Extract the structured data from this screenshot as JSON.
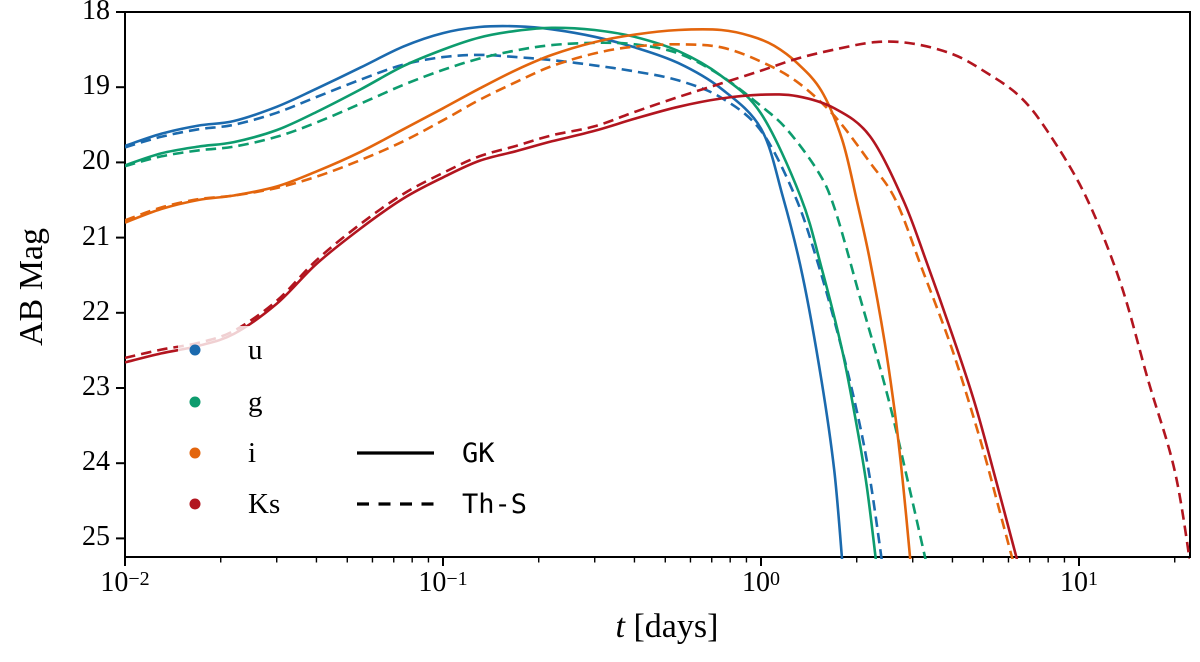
{
  "figure": {
    "background": "#ffffff"
  },
  "axes": {
    "x": {
      "label_t": "t",
      "label_unit": " [days]",
      "scale": "log",
      "min": 0.01,
      "max": 22.3,
      "ticks": [
        {
          "value": 0.01,
          "base": "10",
          "exp": "−2"
        },
        {
          "value": 0.1,
          "base": "10",
          "exp": "−1"
        },
        {
          "value": 1.0,
          "base": "10",
          "exp": "0"
        },
        {
          "value": 10.0,
          "base": "10",
          "exp": "1"
        }
      ]
    },
    "y": {
      "label": "AB Mag",
      "inverted": true,
      "min": 18,
      "max": 25.25,
      "ticks": [
        "18",
        "19",
        "20",
        "21",
        "22",
        "23",
        "24",
        "25"
      ]
    }
  },
  "legend": {
    "bands": [
      {
        "label": "u",
        "color": "#1b6aae"
      },
      {
        "label": "g",
        "color": "#0d9c6e"
      },
      {
        "label": "i",
        "color": "#e3650d"
      },
      {
        "label": "Ks",
        "color": "#b2151f"
      }
    ],
    "models": [
      {
        "label": "GK",
        "linestyle": "solid"
      },
      {
        "label": "Th-S",
        "linestyle": "dashed"
      }
    ],
    "frame_color": "#ffffff",
    "frame_alpha": 0.8
  },
  "chart_data": {
    "type": "line",
    "title": "",
    "xlabel": "t [days]",
    "ylabel": "AB Mag",
    "x_scale": "log",
    "xlim": [
      0.01,
      22.3
    ],
    "ylim_display": [
      25.25,
      18
    ],
    "grid": false,
    "legend_position": "lower-left",
    "series": [
      {
        "name": "u GK",
        "band": "u",
        "model": "GK",
        "style": "solid",
        "color": "#1b6aae",
        "points": [
          [
            0.01,
            19.78
          ],
          [
            0.013,
            19.62
          ],
          [
            0.017,
            19.51
          ],
          [
            0.022,
            19.45
          ],
          [
            0.03,
            19.26
          ],
          [
            0.04,
            19.02
          ],
          [
            0.055,
            18.74
          ],
          [
            0.075,
            18.46
          ],
          [
            0.1,
            18.28
          ],
          [
            0.13,
            18.2
          ],
          [
            0.17,
            18.19
          ],
          [
            0.22,
            18.23
          ],
          [
            0.3,
            18.33
          ],
          [
            0.4,
            18.47
          ],
          [
            0.55,
            18.68
          ],
          [
            0.75,
            19.02
          ],
          [
            1.0,
            19.55
          ],
          [
            1.17,
            20.45
          ],
          [
            1.35,
            21.5
          ],
          [
            1.55,
            22.9
          ],
          [
            1.7,
            24.1
          ],
          [
            1.8,
            25.3
          ]
        ]
      },
      {
        "name": "u Th-S",
        "band": "u",
        "model": "Th-S",
        "style": "dashed",
        "color": "#1b6aae",
        "points": [
          [
            0.01,
            19.8
          ],
          [
            0.013,
            19.66
          ],
          [
            0.017,
            19.56
          ],
          [
            0.022,
            19.5
          ],
          [
            0.03,
            19.34
          ],
          [
            0.04,
            19.13
          ],
          [
            0.055,
            18.9
          ],
          [
            0.075,
            18.7
          ],
          [
            0.1,
            18.6
          ],
          [
            0.13,
            18.57
          ],
          [
            0.17,
            18.6
          ],
          [
            0.22,
            18.64
          ],
          [
            0.3,
            18.71
          ],
          [
            0.4,
            18.79
          ],
          [
            0.55,
            18.91
          ],
          [
            0.75,
            19.14
          ],
          [
            1.0,
            19.58
          ],
          [
            1.28,
            20.45
          ],
          [
            1.5,
            21.3
          ],
          [
            1.75,
            22.3
          ],
          [
            2.0,
            23.3
          ],
          [
            2.2,
            24.2
          ],
          [
            2.4,
            25.3
          ]
        ]
      },
      {
        "name": "g GK",
        "band": "g",
        "model": "GK",
        "style": "solid",
        "color": "#0d9c6e",
        "points": [
          [
            0.01,
            20.04
          ],
          [
            0.013,
            19.88
          ],
          [
            0.017,
            19.79
          ],
          [
            0.022,
            19.73
          ],
          [
            0.03,
            19.57
          ],
          [
            0.04,
            19.33
          ],
          [
            0.055,
            19.03
          ],
          [
            0.075,
            18.72
          ],
          [
            0.1,
            18.5
          ],
          [
            0.13,
            18.34
          ],
          [
            0.17,
            18.25
          ],
          [
            0.22,
            18.21
          ],
          [
            0.3,
            18.24
          ],
          [
            0.4,
            18.33
          ],
          [
            0.55,
            18.52
          ],
          [
            0.75,
            18.85
          ],
          [
            1.0,
            19.35
          ],
          [
            1.33,
            20.45
          ],
          [
            1.55,
            21.4
          ],
          [
            1.8,
            22.5
          ],
          [
            2.0,
            23.5
          ],
          [
            2.15,
            24.3
          ],
          [
            2.3,
            25.3
          ]
        ]
      },
      {
        "name": "g Th-S",
        "band": "g",
        "model": "Th-S",
        "style": "dashed",
        "color": "#0d9c6e",
        "points": [
          [
            0.01,
            20.05
          ],
          [
            0.013,
            19.92
          ],
          [
            0.017,
            19.84
          ],
          [
            0.022,
            19.79
          ],
          [
            0.03,
            19.66
          ],
          [
            0.04,
            19.47
          ],
          [
            0.055,
            19.22
          ],
          [
            0.075,
            18.97
          ],
          [
            0.1,
            18.77
          ],
          [
            0.13,
            18.62
          ],
          [
            0.17,
            18.51
          ],
          [
            0.22,
            18.44
          ],
          [
            0.3,
            18.41
          ],
          [
            0.4,
            18.43
          ],
          [
            0.55,
            18.55
          ],
          [
            0.75,
            18.85
          ],
          [
            1.0,
            19.25
          ],
          [
            1.2,
            19.55
          ],
          [
            1.5,
            20.1
          ],
          [
            1.7,
            20.6
          ],
          [
            2.05,
            21.8
          ],
          [
            2.5,
            23.1
          ],
          [
            2.9,
            24.25
          ],
          [
            3.3,
            25.3
          ]
        ]
      },
      {
        "name": "i GK",
        "band": "i",
        "model": "GK",
        "style": "solid",
        "color": "#e3650d",
        "points": [
          [
            0.01,
            20.8
          ],
          [
            0.013,
            20.62
          ],
          [
            0.017,
            20.5
          ],
          [
            0.022,
            20.44
          ],
          [
            0.03,
            20.32
          ],
          [
            0.04,
            20.12
          ],
          [
            0.055,
            19.86
          ],
          [
            0.075,
            19.56
          ],
          [
            0.1,
            19.28
          ],
          [
            0.13,
            19.02
          ],
          [
            0.17,
            18.77
          ],
          [
            0.22,
            18.57
          ],
          [
            0.3,
            18.4
          ],
          [
            0.4,
            18.3
          ],
          [
            0.55,
            18.24
          ],
          [
            0.75,
            18.24
          ],
          [
            0.93,
            18.32
          ],
          [
            1.1,
            18.45
          ],
          [
            1.3,
            18.68
          ],
          [
            1.55,
            19.05
          ],
          [
            1.8,
            19.7
          ],
          [
            2.0,
            20.5
          ],
          [
            2.2,
            21.3
          ],
          [
            2.45,
            22.4
          ],
          [
            2.65,
            23.4
          ],
          [
            2.8,
            24.3
          ],
          [
            2.95,
            25.3
          ]
        ]
      },
      {
        "name": "i Th-S",
        "band": "i",
        "model": "Th-S",
        "style": "dashed",
        "color": "#e3650d",
        "points": [
          [
            0.01,
            20.77
          ],
          [
            0.013,
            20.6
          ],
          [
            0.017,
            20.49
          ],
          [
            0.022,
            20.44
          ],
          [
            0.03,
            20.34
          ],
          [
            0.04,
            20.19
          ],
          [
            0.055,
            19.97
          ],
          [
            0.075,
            19.72
          ],
          [
            0.1,
            19.44
          ],
          [
            0.13,
            19.17
          ],
          [
            0.17,
            18.93
          ],
          [
            0.22,
            18.72
          ],
          [
            0.3,
            18.55
          ],
          [
            0.4,
            18.46
          ],
          [
            0.55,
            18.43
          ],
          [
            0.75,
            18.47
          ],
          [
            1.0,
            18.66
          ],
          [
            1.3,
            18.93
          ],
          [
            1.7,
            19.38
          ],
          [
            2.2,
            20.0
          ],
          [
            2.65,
            20.5
          ],
          [
            3.2,
            21.4
          ],
          [
            4.0,
            22.5
          ],
          [
            4.9,
            23.7
          ],
          [
            5.6,
            24.6
          ],
          [
            6.2,
            25.3
          ]
        ]
      },
      {
        "name": "Ks GK",
        "band": "Ks",
        "model": "GK",
        "style": "solid",
        "color": "#b2151f",
        "points": [
          [
            0.01,
            22.66
          ],
          [
            0.013,
            22.54
          ],
          [
            0.017,
            22.44
          ],
          [
            0.022,
            22.28
          ],
          [
            0.03,
            21.88
          ],
          [
            0.04,
            21.35
          ],
          [
            0.055,
            20.88
          ],
          [
            0.075,
            20.48
          ],
          [
            0.1,
            20.2
          ],
          [
            0.13,
            19.98
          ],
          [
            0.17,
            19.85
          ],
          [
            0.22,
            19.72
          ],
          [
            0.3,
            19.58
          ],
          [
            0.4,
            19.42
          ],
          [
            0.55,
            19.26
          ],
          [
            0.75,
            19.15
          ],
          [
            1.0,
            19.1
          ],
          [
            1.3,
            19.12
          ],
          [
            1.7,
            19.28
          ],
          [
            2.2,
            19.65
          ],
          [
            2.8,
            20.5
          ],
          [
            3.3,
            21.3
          ],
          [
            4.0,
            22.3
          ],
          [
            4.7,
            23.2
          ],
          [
            5.5,
            24.25
          ],
          [
            6.4,
            25.3
          ]
        ]
      },
      {
        "name": "Ks Th-S",
        "band": "Ks",
        "model": "Th-S",
        "style": "dashed",
        "color": "#b2151f",
        "points": [
          [
            0.01,
            22.6
          ],
          [
            0.013,
            22.49
          ],
          [
            0.017,
            22.4
          ],
          [
            0.022,
            22.24
          ],
          [
            0.03,
            21.84
          ],
          [
            0.04,
            21.3
          ],
          [
            0.055,
            20.82
          ],
          [
            0.075,
            20.42
          ],
          [
            0.1,
            20.14
          ],
          [
            0.13,
            19.92
          ],
          [
            0.17,
            19.78
          ],
          [
            0.22,
            19.64
          ],
          [
            0.3,
            19.52
          ],
          [
            0.4,
            19.33
          ],
          [
            0.55,
            19.13
          ],
          [
            0.75,
            18.95
          ],
          [
            1.0,
            18.78
          ],
          [
            1.3,
            18.62
          ],
          [
            1.7,
            18.5
          ],
          [
            2.3,
            18.4
          ],
          [
            3.0,
            18.42
          ],
          [
            4.0,
            18.56
          ],
          [
            5.0,
            18.78
          ],
          [
            6.5,
            19.12
          ],
          [
            8.0,
            19.6
          ],
          [
            10.5,
            20.45
          ],
          [
            13.5,
            21.6
          ],
          [
            16.5,
            22.9
          ],
          [
            20.0,
            24.1
          ],
          [
            22.5,
            25.4
          ]
        ]
      }
    ]
  }
}
